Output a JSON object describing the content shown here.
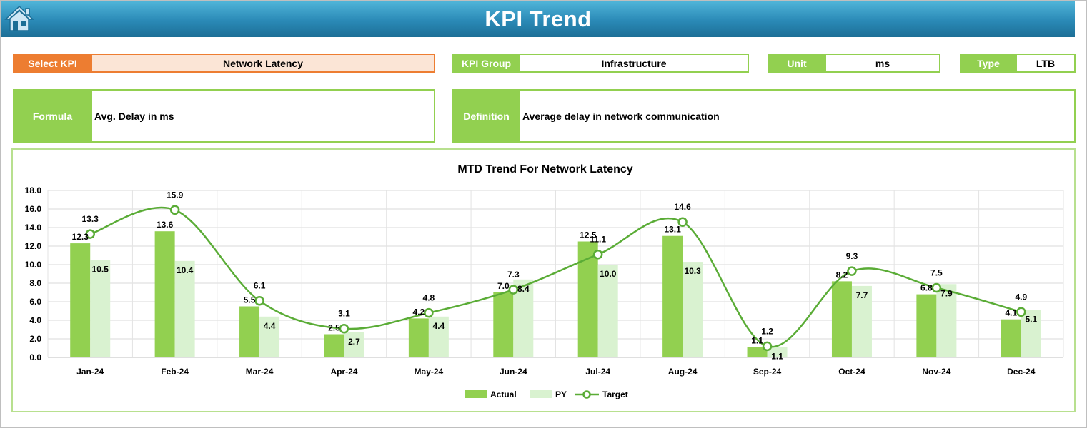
{
  "header": {
    "title": "KPI Trend",
    "home_icon": "home-icon"
  },
  "fields": {
    "kpi": {
      "label": "Select KPI",
      "value": "Network Latency"
    },
    "group": {
      "label": "KPI Group",
      "value": "Infrastructure"
    },
    "unit": {
      "label": "Unit",
      "value": "ms"
    },
    "type": {
      "label": "Type",
      "value": "LTB"
    },
    "formula": {
      "label": "Formula",
      "value": "Avg. Delay in ms"
    },
    "definition": {
      "label": "Definition",
      "value": "Average delay in network communication"
    }
  },
  "colors": {
    "actual": "#92d050",
    "py": "#d9f2d0",
    "target": "#5aac36",
    "header": "#2a89b6",
    "select_kpi": "#ed7d31"
  },
  "chart_data": {
    "type": "bar",
    "title": "MTD Trend For Network Latency",
    "categories": [
      "Jan-24",
      "Feb-24",
      "Mar-24",
      "Apr-24",
      "May-24",
      "Jun-24",
      "Jul-24",
      "Aug-24",
      "Sep-24",
      "Oct-24",
      "Nov-24",
      "Dec-24"
    ],
    "series": [
      {
        "name": "Actual",
        "type": "bar",
        "values": [
          12.3,
          13.6,
          5.5,
          2.5,
          4.2,
          7.0,
          12.5,
          13.1,
          1.1,
          8.2,
          6.8,
          4.1
        ]
      },
      {
        "name": "PY",
        "type": "bar",
        "values": [
          10.5,
          10.4,
          4.4,
          2.7,
          4.4,
          8.4,
          10.0,
          10.3,
          1.1,
          7.7,
          7.9,
          5.1
        ]
      },
      {
        "name": "Target",
        "type": "line",
        "values": [
          13.3,
          15.9,
          6.1,
          3.1,
          4.8,
          7.3,
          11.1,
          14.6,
          1.2,
          9.3,
          7.5,
          4.9
        ]
      }
    ],
    "ylim": [
      0,
      18
    ],
    "yticks": [
      "0.0",
      "2.0",
      "4.0",
      "6.0",
      "8.0",
      "10.0",
      "12.0",
      "14.0",
      "16.0",
      "18.0"
    ],
    "grid": true,
    "legend": "bottom"
  }
}
